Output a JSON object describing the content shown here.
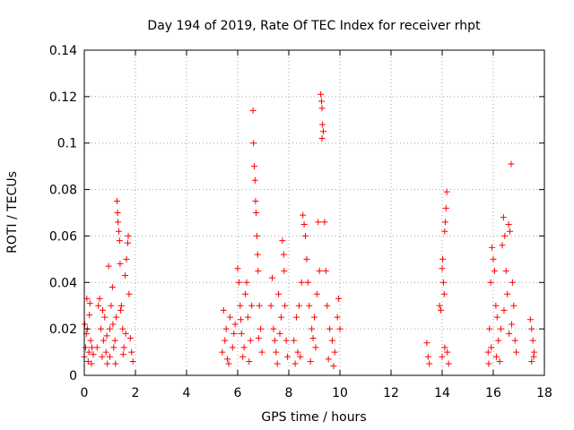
{
  "chart_data": {
    "type": "scatter",
    "title": "Day 194 of 2019, Rate Of TEC Index for receiver rhpt",
    "xlabel": "GPS time / hours",
    "ylabel": "ROTI / TECUs",
    "xlim": [
      0,
      18
    ],
    "ylim": [
      0,
      0.14
    ],
    "x_ticks": [
      0,
      2,
      4,
      6,
      8,
      10,
      12,
      14,
      16,
      18
    ],
    "x_tick_labels": [
      "0",
      "2",
      "4",
      "6",
      "8",
      "10",
      "12",
      "14",
      "16",
      "18"
    ],
    "y_ticks": [
      0,
      0.02,
      0.04,
      0.06,
      0.08,
      0.1,
      0.12,
      0.14
    ],
    "y_tick_labels": [
      "0",
      "0.02",
      "0.04",
      "0.06",
      "0.08",
      "0.1",
      "0.12",
      "0.14"
    ],
    "grid": true,
    "marker": "+",
    "marker_color": "#ff0000",
    "series": [
      {
        "name": "rhpt",
        "points": [
          [
            0.0,
            0.008
          ],
          [
            0.05,
            0.012
          ],
          [
            0.08,
            0.018
          ],
          [
            0.1,
            0.033
          ],
          [
            0.12,
            0.02
          ],
          [
            0.15,
            0.006
          ],
          [
            0.18,
            0.01
          ],
          [
            0.2,
            0.026
          ],
          [
            0.25,
            0.015
          ],
          [
            0.28,
            0.005
          ],
          [
            0.3,
            0.012
          ],
          [
            0.35,
            0.009
          ],
          [
            0.02,
            0.022
          ],
          [
            0.22,
            0.031
          ],
          [
            0.5,
            0.012
          ],
          [
            0.55,
            0.03
          ],
          [
            0.6,
            0.033
          ],
          [
            0.65,
            0.02
          ],
          [
            0.7,
            0.008
          ],
          [
            0.75,
            0.015
          ],
          [
            0.8,
            0.025
          ],
          [
            0.85,
            0.01
          ],
          [
            0.9,
            0.005
          ],
          [
            0.95,
            0.047
          ],
          [
            1.0,
            0.02
          ],
          [
            1.05,
            0.03
          ],
          [
            1.1,
            0.038
          ],
          [
            1.15,
            0.012
          ],
          [
            1.2,
            0.015
          ],
          [
            1.25,
            0.025
          ],
          [
            1.28,
            0.075
          ],
          [
            1.3,
            0.07
          ],
          [
            1.32,
            0.066
          ],
          [
            1.35,
            0.062
          ],
          [
            1.38,
            0.058
          ],
          [
            1.4,
            0.048
          ],
          [
            1.45,
            0.03
          ],
          [
            1.5,
            0.02
          ],
          [
            1.55,
            0.012
          ],
          [
            1.6,
            0.043
          ],
          [
            1.65,
            0.05
          ],
          [
            1.7,
            0.057
          ],
          [
            1.72,
            0.06
          ],
          [
            1.75,
            0.035
          ],
          [
            1.8,
            0.016
          ],
          [
            1.85,
            0.01
          ],
          [
            1.9,
            0.006
          ],
          [
            1.0,
            0.008
          ],
          [
            1.12,
            0.022
          ],
          [
            1.22,
            0.005
          ],
          [
            1.42,
            0.028
          ],
          [
            1.52,
            0.009
          ],
          [
            1.62,
            0.018
          ],
          [
            0.72,
            0.028
          ],
          [
            0.88,
            0.017
          ],
          [
            5.4,
            0.01
          ],
          [
            5.45,
            0.028
          ],
          [
            5.5,
            0.015
          ],
          [
            5.55,
            0.02
          ],
          [
            5.6,
            0.007
          ],
          [
            5.7,
            0.025
          ],
          [
            5.8,
            0.012
          ],
          [
            5.9,
            0.022
          ],
          [
            6.0,
            0.046
          ],
          [
            6.05,
            0.04
          ],
          [
            6.1,
            0.03
          ],
          [
            6.15,
            0.018
          ],
          [
            6.2,
            0.008
          ],
          [
            6.3,
            0.035
          ],
          [
            6.35,
            0.04
          ],
          [
            6.4,
            0.025
          ],
          [
            6.5,
            0.015
          ],
          [
            6.55,
            0.03
          ],
          [
            6.6,
            0.114
          ],
          [
            6.62,
            0.1
          ],
          [
            6.65,
            0.09
          ],
          [
            6.68,
            0.084
          ],
          [
            6.7,
            0.075
          ],
          [
            6.72,
            0.07
          ],
          [
            6.75,
            0.06
          ],
          [
            6.78,
            0.052
          ],
          [
            6.8,
            0.045
          ],
          [
            6.85,
            0.03
          ],
          [
            6.9,
            0.02
          ],
          [
            6.95,
            0.01
          ],
          [
            5.65,
            0.005
          ],
          [
            5.85,
            0.018
          ],
          [
            6.25,
            0.012
          ],
          [
            6.45,
            0.006
          ],
          [
            6.12,
            0.024
          ],
          [
            6.82,
            0.016
          ],
          [
            7.3,
            0.03
          ],
          [
            7.35,
            0.042
          ],
          [
            7.4,
            0.02
          ],
          [
            7.5,
            0.01
          ],
          [
            7.6,
            0.035
          ],
          [
            7.7,
            0.025
          ],
          [
            7.75,
            0.058
          ],
          [
            7.8,
            0.052
          ],
          [
            7.82,
            0.045
          ],
          [
            7.85,
            0.03
          ],
          [
            7.9,
            0.015
          ],
          [
            7.95,
            0.008
          ],
          [
            7.45,
            0.015
          ],
          [
            7.55,
            0.005
          ],
          [
            7.65,
            0.018
          ],
          [
            8.2,
            0.015
          ],
          [
            8.3,
            0.025
          ],
          [
            8.4,
            0.03
          ],
          [
            8.5,
            0.04
          ],
          [
            8.55,
            0.069
          ],
          [
            8.6,
            0.065
          ],
          [
            8.65,
            0.06
          ],
          [
            8.7,
            0.05
          ],
          [
            8.75,
            0.04
          ],
          [
            8.8,
            0.03
          ],
          [
            8.9,
            0.02
          ],
          [
            9.0,
            0.025
          ],
          [
            9.1,
            0.035
          ],
          [
            9.15,
            0.066
          ],
          [
            9.2,
            0.045
          ],
          [
            9.25,
            0.121
          ],
          [
            9.28,
            0.118
          ],
          [
            9.3,
            0.115
          ],
          [
            9.32,
            0.108
          ],
          [
            9.35,
            0.105
          ],
          [
            9.3,
            0.102
          ],
          [
            9.4,
            0.066
          ],
          [
            9.45,
            0.045
          ],
          [
            9.5,
            0.03
          ],
          [
            9.6,
            0.02
          ],
          [
            9.7,
            0.015
          ],
          [
            9.8,
            0.01
          ],
          [
            9.9,
            0.025
          ],
          [
            9.95,
            0.033
          ],
          [
            10.0,
            0.02
          ],
          [
            8.25,
            0.005
          ],
          [
            8.35,
            0.01
          ],
          [
            8.45,
            0.008
          ],
          [
            8.85,
            0.006
          ],
          [
            9.05,
            0.012
          ],
          [
            9.55,
            0.007
          ],
          [
            9.75,
            0.004
          ],
          [
            8.95,
            0.016
          ],
          [
            13.4,
            0.014
          ],
          [
            13.45,
            0.008
          ],
          [
            13.5,
            0.005
          ],
          [
            13.9,
            0.03
          ],
          [
            13.95,
            0.028
          ],
          [
            14.0,
            0.046
          ],
          [
            14.02,
            0.05
          ],
          [
            14.05,
            0.04
          ],
          [
            14.08,
            0.035
          ],
          [
            14.1,
            0.062
          ],
          [
            14.12,
            0.066
          ],
          [
            14.15,
            0.072
          ],
          [
            14.18,
            0.079
          ],
          [
            14.2,
            0.01
          ],
          [
            14.25,
            0.005
          ],
          [
            14.0,
            0.008
          ],
          [
            14.1,
            0.012
          ],
          [
            15.8,
            0.01
          ],
          [
            15.85,
            0.02
          ],
          [
            15.9,
            0.04
          ],
          [
            15.95,
            0.055
          ],
          [
            16.0,
            0.05
          ],
          [
            16.05,
            0.045
          ],
          [
            16.1,
            0.03
          ],
          [
            16.15,
            0.025
          ],
          [
            16.2,
            0.015
          ],
          [
            16.3,
            0.02
          ],
          [
            16.35,
            0.056
          ],
          [
            16.4,
            0.068
          ],
          [
            16.45,
            0.06
          ],
          [
            16.5,
            0.045
          ],
          [
            16.55,
            0.035
          ],
          [
            16.6,
            0.065
          ],
          [
            16.65,
            0.062
          ],
          [
            16.7,
            0.091
          ],
          [
            16.75,
            0.04
          ],
          [
            16.8,
            0.03
          ],
          [
            16.85,
            0.015
          ],
          [
            16.9,
            0.01
          ],
          [
            15.82,
            0.005
          ],
          [
            15.92,
            0.012
          ],
          [
            16.12,
            0.008
          ],
          [
            16.25,
            0.006
          ],
          [
            16.42,
            0.028
          ],
          [
            16.62,
            0.018
          ],
          [
            16.72,
            0.022
          ],
          [
            17.45,
            0.024
          ],
          [
            17.5,
            0.02
          ],
          [
            17.55,
            0.015
          ],
          [
            17.6,
            0.01
          ],
          [
            17.5,
            0.006
          ],
          [
            17.58,
            0.008
          ]
        ]
      }
    ]
  }
}
